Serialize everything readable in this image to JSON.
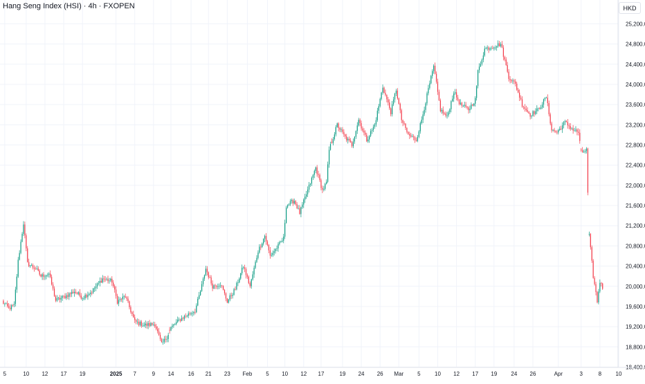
{
  "header": {
    "title": "Hang Seng Index (HSI) · 4h · FXOPEN",
    "currency": "HKD"
  },
  "chart_data": {
    "type": "candlestick",
    "title": "Hang Seng Index (HSI) · 4h · FXOPEN",
    "y_ticks": [
      "25,200.0",
      "24,800.0",
      "24,400.0",
      "24,000.0",
      "23,600.0",
      "23,200.0",
      "22,800.0",
      "22,400.0",
      "22,000.0",
      "21,600.0",
      "21,200.0",
      "20,800.0",
      "20,400.0",
      "20,000.0",
      "19,600.0",
      "19,200.0",
      "18,800.0",
      "18,400.0"
    ],
    "y_tick_values": [
      25200,
      24800,
      24400,
      24000,
      23600,
      23200,
      22800,
      22400,
      22000,
      21600,
      21200,
      20800,
      20400,
      20000,
      19600,
      19200,
      18800,
      18400
    ],
    "ylim": [
      18160,
      25480
    ],
    "bar_count": 460,
    "x_ticks": [
      {
        "label": "5",
        "bar": 2
      },
      {
        "label": "10",
        "bar": 18
      },
      {
        "label": "12",
        "bar": 32
      },
      {
        "label": "17",
        "bar": 46
      },
      {
        "label": "19",
        "bar": 60
      },
      {
        "label": "2025",
        "bar": 85
      },
      {
        "label": "7",
        "bar": 99
      },
      {
        "label": "9",
        "bar": 113
      },
      {
        "label": "14",
        "bar": 126
      },
      {
        "label": "16",
        "bar": 141
      },
      {
        "label": "21",
        "bar": 154
      },
      {
        "label": "23",
        "bar": 168
      },
      {
        "label": "Feb",
        "bar": 183
      },
      {
        "label": "5",
        "bar": 198
      },
      {
        "label": "10",
        "bar": 211
      },
      {
        "label": "12",
        "bar": 225
      },
      {
        "label": "17",
        "bar": 238
      },
      {
        "label": "19",
        "bar": 254
      },
      {
        "label": "24",
        "bar": 268
      },
      {
        "label": "26",
        "bar": 282
      },
      {
        "label": "Mar",
        "bar": 296
      },
      {
        "label": "5",
        "bar": 311
      },
      {
        "label": "10",
        "bar": 325
      },
      {
        "label": "12",
        "bar": 339
      },
      {
        "label": "17",
        "bar": 353
      },
      {
        "label": "19",
        "bar": 367
      },
      {
        "label": "24",
        "bar": 382
      },
      {
        "label": "26",
        "bar": 396
      },
      {
        "label": "Apr",
        "bar": 415
      },
      {
        "label": "3",
        "bar": 432
      },
      {
        "label": "8",
        "bar": 446
      },
      {
        "label": "10",
        "bar": 460
      }
    ],
    "up_color": "#089981",
    "down_color": "#f23645",
    "grid": true,
    "path": [
      {
        "bar": 0,
        "price": 19700
      },
      {
        "bar": 5,
        "price": 19560
      },
      {
        "bar": 9,
        "price": 19620
      },
      {
        "bar": 12,
        "price": 20500
      },
      {
        "bar": 16,
        "price": 21250
      },
      {
        "bar": 19,
        "price": 20450
      },
      {
        "bar": 25,
        "price": 20350
      },
      {
        "bar": 29,
        "price": 20200
      },
      {
        "bar": 35,
        "price": 20250
      },
      {
        "bar": 40,
        "price": 19720
      },
      {
        "bar": 47,
        "price": 19800
      },
      {
        "bar": 54,
        "price": 19900
      },
      {
        "bar": 60,
        "price": 19780
      },
      {
        "bar": 67,
        "price": 19900
      },
      {
        "bar": 75,
        "price": 20150
      },
      {
        "bar": 82,
        "price": 20100
      },
      {
        "bar": 86,
        "price": 19700
      },
      {
        "bar": 92,
        "price": 19800
      },
      {
        "bar": 99,
        "price": 19300
      },
      {
        "bar": 106,
        "price": 19230
      },
      {
        "bar": 114,
        "price": 19250
      },
      {
        "bar": 119,
        "price": 18850
      },
      {
        "bar": 123,
        "price": 19000
      },
      {
        "bar": 126,
        "price": 19180
      },
      {
        "bar": 133,
        "price": 19350
      },
      {
        "bar": 140,
        "price": 19460
      },
      {
        "bar": 144,
        "price": 19520
      },
      {
        "bar": 148,
        "price": 19900
      },
      {
        "bar": 152,
        "price": 20350
      },
      {
        "bar": 157,
        "price": 20000
      },
      {
        "bar": 163,
        "price": 20050
      },
      {
        "bar": 168,
        "price": 19700
      },
      {
        "bar": 174,
        "price": 19950
      },
      {
        "bar": 180,
        "price": 20400
      },
      {
        "bar": 185,
        "price": 20000
      },
      {
        "bar": 191,
        "price": 20700
      },
      {
        "bar": 196,
        "price": 21000
      },
      {
        "bar": 200,
        "price": 20600
      },
      {
        "bar": 206,
        "price": 20800
      },
      {
        "bar": 210,
        "price": 20950
      },
      {
        "bar": 212,
        "price": 21600
      },
      {
        "bar": 218,
        "price": 21700
      },
      {
        "bar": 222,
        "price": 21450
      },
      {
        "bar": 228,
        "price": 21900
      },
      {
        "bar": 234,
        "price": 22350
      },
      {
        "bar": 239,
        "price": 21900
      },
      {
        "bar": 242,
        "price": 22050
      },
      {
        "bar": 244,
        "price": 22700
      },
      {
        "bar": 250,
        "price": 23200
      },
      {
        "bar": 256,
        "price": 22950
      },
      {
        "bar": 261,
        "price": 22800
      },
      {
        "bar": 266,
        "price": 23300
      },
      {
        "bar": 272,
        "price": 22900
      },
      {
        "bar": 278,
        "price": 23200
      },
      {
        "bar": 284,
        "price": 23950
      },
      {
        "bar": 290,
        "price": 23450
      },
      {
        "bar": 294,
        "price": 23900
      },
      {
        "bar": 298,
        "price": 23300
      },
      {
        "bar": 303,
        "price": 23000
      },
      {
        "bar": 309,
        "price": 22900
      },
      {
        "bar": 313,
        "price": 23300
      },
      {
        "bar": 318,
        "price": 23900
      },
      {
        "bar": 322,
        "price": 24350
      },
      {
        "bar": 327,
        "price": 23500
      },
      {
        "bar": 332,
        "price": 23350
      },
      {
        "bar": 337,
        "price": 23850
      },
      {
        "bar": 342,
        "price": 23600
      },
      {
        "bar": 348,
        "price": 23500
      },
      {
        "bar": 353,
        "price": 23700
      },
      {
        "bar": 355,
        "price": 24250
      },
      {
        "bar": 360,
        "price": 24700
      },
      {
        "bar": 366,
        "price": 24750
      },
      {
        "bar": 372,
        "price": 24800
      },
      {
        "bar": 378,
        "price": 24150
      },
      {
        "bar": 383,
        "price": 24000
      },
      {
        "bar": 388,
        "price": 23600
      },
      {
        "bar": 394,
        "price": 23400
      },
      {
        "bar": 400,
        "price": 23500
      },
      {
        "bar": 406,
        "price": 23750
      },
      {
        "bar": 410,
        "price": 23100
      },
      {
        "bar": 414,
        "price": 23050
      },
      {
        "bar": 420,
        "price": 23250
      },
      {
        "bar": 426,
        "price": 23100
      },
      {
        "bar": 430,
        "price": 23050
      },
      {
        "bar": 432,
        "price": 22650
      },
      {
        "bar": 436,
        "price": 22700
      },
      {
        "bar": 438,
        "price": 21000
      },
      {
        "bar": 441,
        "price": 20200
      },
      {
        "bar": 444,
        "price": 19700
      },
      {
        "bar": 446,
        "price": 20100
      },
      {
        "bar": 448,
        "price": 19950
      }
    ],
    "gaps": [
      [
        124,
        125
      ],
      [
        245,
        246
      ],
      [
        431,
        432
      ],
      [
        437,
        438
      ]
    ]
  }
}
